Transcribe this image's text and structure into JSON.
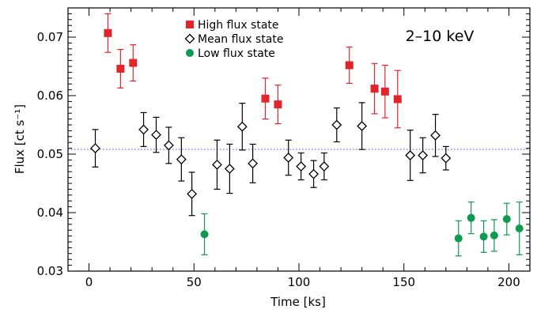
{
  "chart_data": {
    "type": "scatter",
    "annotation": "2–10 keV",
    "xlabel": "Time [ks]",
    "ylabel": "Flux [ct s⁻¹]",
    "xlim": [
      -10,
      210
    ],
    "ylim": [
      0.03,
      0.075
    ],
    "x_ticks": [
      0,
      50,
      100,
      150,
      200
    ],
    "x_tick_labels": [
      "0",
      "50",
      "100",
      "150",
      "200"
    ],
    "y_ticks": [
      0.03,
      0.04,
      0.05,
      0.06,
      0.07
    ],
    "y_tick_labels": [
      "0.03",
      "0.04",
      "0.05",
      "0.06",
      "0.07"
    ],
    "grid": false,
    "legend_position": "top-left",
    "reference_line": {
      "y": 0.0508,
      "style": "dotted",
      "color": "#5b5bd6"
    },
    "series": [
      {
        "name": "High flux state",
        "marker": "filled-square",
        "color": "#e3242b",
        "points": [
          {
            "x": 9,
            "y": 0.0707,
            "err": 0.0033
          },
          {
            "x": 15,
            "y": 0.0646,
            "err": 0.0033
          },
          {
            "x": 21,
            "y": 0.0656,
            "err": 0.0031
          },
          {
            "x": 84,
            "y": 0.0595,
            "err": 0.0035
          },
          {
            "x": 90,
            "y": 0.0585,
            "err": 0.0033
          },
          {
            "x": 124,
            "y": 0.0652,
            "err": 0.0031
          },
          {
            "x": 136,
            "y": 0.0612,
            "err": 0.0043
          },
          {
            "x": 141,
            "y": 0.0607,
            "err": 0.0045
          },
          {
            "x": 147,
            "y": 0.0594,
            "err": 0.0049
          }
        ]
      },
      {
        "name": "Mean flux state",
        "marker": "open-diamond",
        "color": "#000000",
        "points": [
          {
            "x": 3,
            "y": 0.051,
            "err": 0.0032
          },
          {
            "x": 26,
            "y": 0.0542,
            "err": 0.0029
          },
          {
            "x": 32,
            "y": 0.0533,
            "err": 0.003
          },
          {
            "x": 38,
            "y": 0.0515,
            "err": 0.0031
          },
          {
            "x": 44,
            "y": 0.0491,
            "err": 0.0037
          },
          {
            "x": 49,
            "y": 0.0432,
            "err": 0.0037
          },
          {
            "x": 61,
            "y": 0.0482,
            "err": 0.0042
          },
          {
            "x": 67,
            "y": 0.0475,
            "err": 0.0042
          },
          {
            "x": 73,
            "y": 0.0547,
            "err": 0.004
          },
          {
            "x": 78,
            "y": 0.0484,
            "err": 0.0033
          },
          {
            "x": 95,
            "y": 0.0494,
            "err": 0.003
          },
          {
            "x": 101,
            "y": 0.0479,
            "err": 0.0023
          },
          {
            "x": 107,
            "y": 0.0466,
            "err": 0.0023
          },
          {
            "x": 112,
            "y": 0.0479,
            "err": 0.0023
          },
          {
            "x": 118,
            "y": 0.055,
            "err": 0.0029
          },
          {
            "x": 130,
            "y": 0.0548,
            "err": 0.004
          },
          {
            "x": 153,
            "y": 0.0498,
            "err": 0.0043
          },
          {
            "x": 159,
            "y": 0.0498,
            "err": 0.003
          },
          {
            "x": 165,
            "y": 0.0532,
            "err": 0.0036
          },
          {
            "x": 170,
            "y": 0.0493,
            "err": 0.002
          }
        ]
      },
      {
        "name": "Low flux state",
        "marker": "filled-circle",
        "color": "#0f9a4f",
        "points": [
          {
            "x": 55,
            "y": 0.0363,
            "err": 0.0035
          },
          {
            "x": 176,
            "y": 0.0356,
            "err": 0.003
          },
          {
            "x": 182,
            "y": 0.0391,
            "err": 0.0027
          },
          {
            "x": 188,
            "y": 0.0359,
            "err": 0.0027
          },
          {
            "x": 193,
            "y": 0.0361,
            "err": 0.0027
          },
          {
            "x": 199,
            "y": 0.0389,
            "err": 0.0027
          },
          {
            "x": 205,
            "y": 0.0373,
            "err": 0.0045
          }
        ]
      }
    ]
  }
}
